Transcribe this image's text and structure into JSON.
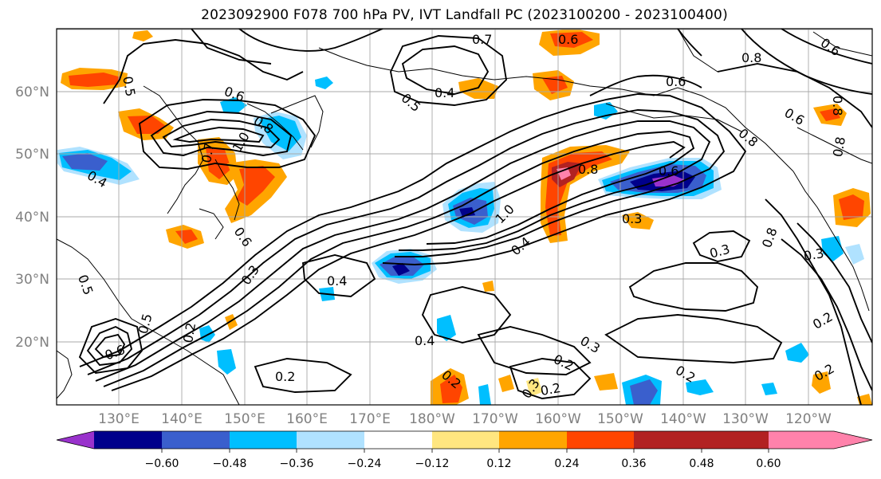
{
  "title": "2023092900 F078 700 hPa PV, IVT Landfall PC (2023100200 - 2023100400)",
  "map": {
    "lat_labels": [
      "60°N",
      "50°N",
      "40°N",
      "30°N",
      "20°N"
    ],
    "lon_labels": [
      "130°E",
      "140°E",
      "150°E",
      "160°E",
      "170°E",
      "180°W",
      "170°W",
      "160°W",
      "150°W",
      "140°W",
      "130°W",
      "120°W"
    ],
    "contour_labels": [
      "0.7",
      "0.6",
      "0.6",
      "0.8",
      "0.5",
      "0.4",
      "0.5",
      "0.6",
      "0.6",
      "0.6",
      "0.8",
      "1.0",
      "0.8",
      "0.7",
      "0.4",
      "0.8",
      "0.8",
      "0.6",
      "1.0",
      "0.3",
      "0.6",
      "0.3",
      "0.4",
      "0.4",
      "0.3",
      "0.8",
      "0.3",
      "0.5",
      "0.5",
      "0.2",
      "0.6",
      "0.4",
      "0.2",
      "0.2",
      "0.2",
      "0.3",
      "0.2",
      "0.2",
      "0.2",
      "0.2",
      "0.3",
      "0.8"
    ]
  },
  "colorbar": {
    "colors": [
      "#9932cc",
      "#00008b",
      "#3a5fcd",
      "#00bfff",
      "#b0e2ff",
      "#ffffff",
      "#ffe680",
      "#ffa500",
      "#ff4500",
      "#b22222",
      "#ff82ab"
    ],
    "tick_labels": [
      "−0.60",
      "−0.48",
      "−0.36",
      "−0.24",
      "−0.12",
      "0.12",
      "0.24",
      "0.36",
      "0.48",
      "0.60"
    ]
  }
}
